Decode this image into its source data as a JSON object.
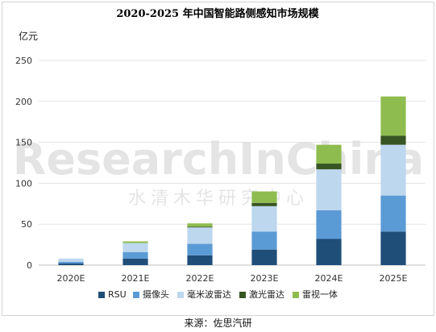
{
  "chart_data": {
    "type": "bar",
    "stacked": true,
    "title": "2020-2025 年中国智能路侧感知市场规模",
    "ylabel": "亿元",
    "xlabel": "",
    "ylim": [
      0,
      250
    ],
    "yticks": [
      0,
      50,
      100,
      150,
      200,
      250
    ],
    "grid": true,
    "legend": "bottom",
    "categories": [
      "2020E",
      "2021E",
      "2022E",
      "2023E",
      "2024E",
      "2025E"
    ],
    "series": [
      {
        "name": "RSU",
        "color": "#1f4e79",
        "values": [
          2,
          8,
          12,
          19,
          32,
          41
        ]
      },
      {
        "name": "摄像头",
        "color": "#5b9bd5",
        "values": [
          2,
          8,
          14,
          22,
          35,
          44
        ]
      },
      {
        "name": "毫米波雷达",
        "color": "#bdd7ee",
        "values": [
          4,
          11,
          20,
          31,
          50,
          62
        ]
      },
      {
        "name": "激光雷达",
        "color": "#375623",
        "values": [
          0,
          0,
          1,
          4,
          7,
          11
        ]
      },
      {
        "name": "雷视一体",
        "color": "#8fbc4f",
        "values": [
          0,
          2,
          4,
          14,
          23,
          48
        ]
      }
    ]
  },
  "watermark": {
    "text_en": "ResearchInChina",
    "text_cn": "水清木华研究中心"
  },
  "source": "来源：佐思汽研"
}
